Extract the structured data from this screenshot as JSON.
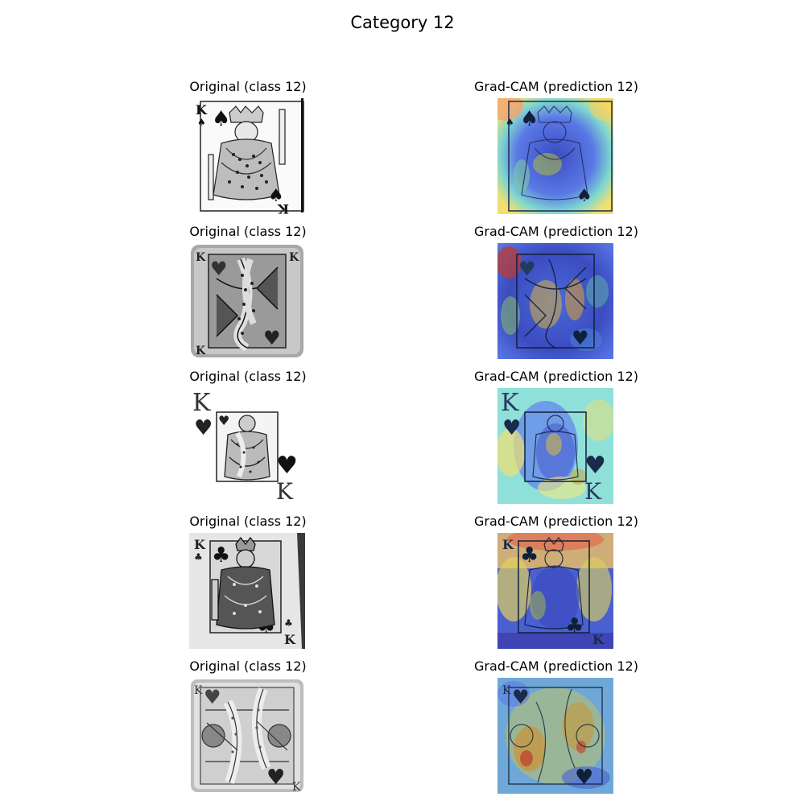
{
  "figure": {
    "title": "Category 12"
  },
  "rows": [
    {
      "original_title": "Original (class 12)",
      "gradcam_title": "Grad-CAM (prediction 12)",
      "suit": "spade",
      "suit_glyph": "♠",
      "rank": "K"
    },
    {
      "original_title": "Original (class 12)",
      "gradcam_title": "Grad-CAM (prediction 12)",
      "suit": "heart",
      "suit_glyph": "♥",
      "rank": "K"
    },
    {
      "original_title": "Original (class 12)",
      "gradcam_title": "Grad-CAM (prediction 12)",
      "suit": "heart",
      "suit_glyph": "♥",
      "rank": "K"
    },
    {
      "original_title": "Original (class 12)",
      "gradcam_title": "Grad-CAM (prediction 12)",
      "suit": "club",
      "suit_glyph": "♣",
      "rank": "K"
    },
    {
      "original_title": "Original (class 12)",
      "gradcam_title": "Grad-CAM (prediction 12)",
      "suit": "heart",
      "suit_glyph": "♥",
      "rank": "K"
    }
  ]
}
